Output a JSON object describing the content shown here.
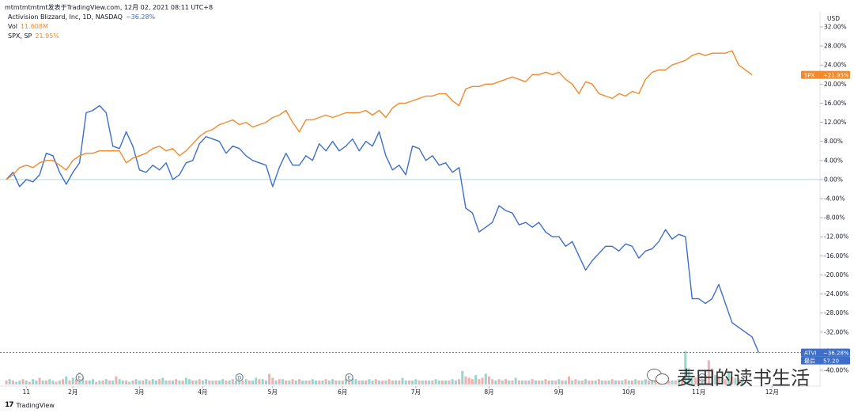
{
  "header": {
    "source_line": "mtmtmtmtmt发表于TradingView.com, 12月 02, 2021 08:11 UTC+8"
  },
  "legend": {
    "atvi": {
      "label": "Activision Blizzard, Inc, 1D, NASDAQ",
      "value": "−36.28%",
      "color": "#3d6ec9"
    },
    "vol": {
      "label": "Vol",
      "value": "11.608M",
      "color": "#f08a2c"
    },
    "spx": {
      "label": "SPX, SP",
      "value": "21.95%",
      "color": "#f08a2c"
    }
  },
  "footer": {
    "logo": "17",
    "brand": "TradingView"
  },
  "watermark": {
    "text": "麦田的读书生活"
  },
  "colors": {
    "atvi": "#3d6ec9",
    "spx": "#f08a2c",
    "vol_up": "#8dd0c6",
    "vol_down": "#f2a5a5",
    "zero_line": "#b2d8d6",
    "grid": "#f0f3fa"
  },
  "chart_data": {
    "type": "line",
    "x_unit": "trading day",
    "y_unit": "%",
    "ylim": [
      -40,
      32
    ],
    "grid": false,
    "y_axis": {
      "currency": "USD",
      "ticks": [
        "32.00%",
        "28.00%",
        "24.00%",
        "20.00%",
        "16.00%",
        "12.00%",
        "8.00%",
        "4.00%",
        "0.00%",
        "-4.00%",
        "-8.00%",
        "-12.00%",
        "-16.00%",
        "-20.00%",
        "-24.00%",
        "-28.00%",
        "-32.00%",
        "-36.00%",
        "-40.00%"
      ],
      "tick_values": [
        32,
        28,
        24,
        20,
        16,
        12,
        8,
        4,
        0,
        -4,
        -8,
        -12,
        -16,
        -20,
        -24,
        -28,
        -32,
        -36,
        -40
      ]
    },
    "x_axis": {
      "ticks": [
        "11",
        "2月",
        "3月",
        "4月",
        "5月",
        "6月",
        "7月",
        "8月",
        "9月",
        "10月",
        "11月",
        "12月"
      ],
      "tick_days": [
        6,
        20,
        40,
        59,
        80,
        101,
        123,
        145,
        166,
        187,
        208,
        230
      ]
    },
    "earnings_markers": [
      {
        "label": "E",
        "day": 22
      },
      {
        "label": "D",
        "day": 70
      },
      {
        "label": "E",
        "day": 103
      },
      {
        "label": "E",
        "day": 209
      }
    ],
    "series": [
      {
        "name": "ATVI",
        "color": "#3d6ec9",
        "last_label": "ATVI",
        "last_value_text": "−36.28%",
        "price_label": "57.20",
        "price_prefix": "最后",
        "points": [
          [
            0,
            0
          ],
          [
            2,
            1.5
          ],
          [
            4,
            -1.5
          ],
          [
            6,
            0
          ],
          [
            8,
            -0.5
          ],
          [
            10,
            1
          ],
          [
            12,
            5.5
          ],
          [
            14,
            5
          ],
          [
            16,
            1.5
          ],
          [
            18,
            -1
          ],
          [
            20,
            1.5
          ],
          [
            22,
            3.5
          ],
          [
            24,
            14
          ],
          [
            26,
            14.5
          ],
          [
            28,
            15.5
          ],
          [
            30,
            14
          ],
          [
            32,
            7
          ],
          [
            34,
            6.5
          ],
          [
            36,
            10
          ],
          [
            38,
            7
          ],
          [
            40,
            2
          ],
          [
            42,
            1.5
          ],
          [
            44,
            3
          ],
          [
            46,
            2
          ],
          [
            48,
            3.5
          ],
          [
            50,
            0
          ],
          [
            52,
            1
          ],
          [
            54,
            3.5
          ],
          [
            56,
            4
          ],
          [
            58,
            7.5
          ],
          [
            60,
            9
          ],
          [
            62,
            8.5
          ],
          [
            64,
            8
          ],
          [
            66,
            5.5
          ],
          [
            68,
            7
          ],
          [
            70,
            6.5
          ],
          [
            72,
            5
          ],
          [
            74,
            4
          ],
          [
            76,
            3.5
          ],
          [
            78,
            3
          ],
          [
            80,
            -1.5
          ],
          [
            82,
            2.5
          ],
          [
            84,
            5.5
          ],
          [
            86,
            3
          ],
          [
            88,
            3
          ],
          [
            90,
            5
          ],
          [
            92,
            4
          ],
          [
            94,
            7.5
          ],
          [
            96,
            6
          ],
          [
            98,
            8
          ],
          [
            100,
            6
          ],
          [
            102,
            7
          ],
          [
            104,
            8.5
          ],
          [
            106,
            6
          ],
          [
            108,
            8
          ],
          [
            110,
            7
          ],
          [
            112,
            10
          ],
          [
            114,
            5
          ],
          [
            116,
            2
          ],
          [
            118,
            3
          ],
          [
            120,
            1
          ],
          [
            122,
            7
          ],
          [
            124,
            6.5
          ],
          [
            126,
            4
          ],
          [
            128,
            5
          ],
          [
            130,
            3
          ],
          [
            132,
            3.5
          ],
          [
            134,
            1.5
          ],
          [
            136,
            2.5
          ],
          [
            138,
            -6
          ],
          [
            140,
            -7
          ],
          [
            142,
            -11
          ],
          [
            144,
            -10
          ],
          [
            146,
            -9
          ],
          [
            148,
            -5.5
          ],
          [
            150,
            -6.5
          ],
          [
            152,
            -7
          ],
          [
            154,
            -9.5
          ],
          [
            156,
            -9
          ],
          [
            158,
            -10
          ],
          [
            160,
            -9
          ],
          [
            162,
            -11
          ],
          [
            164,
            -12
          ],
          [
            166,
            -12
          ],
          [
            168,
            -14
          ],
          [
            170,
            -13
          ],
          [
            172,
            -16
          ],
          [
            174,
            -19
          ],
          [
            176,
            -17
          ],
          [
            178,
            -15.5
          ],
          [
            180,
            -14
          ],
          [
            182,
            -14
          ],
          [
            184,
            -15
          ],
          [
            186,
            -13.5
          ],
          [
            188,
            -14
          ],
          [
            190,
            -16.5
          ],
          [
            192,
            -15
          ],
          [
            194,
            -14.5
          ],
          [
            196,
            -13
          ],
          [
            198,
            -10.5
          ],
          [
            200,
            -12.5
          ],
          [
            202,
            -11.5
          ],
          [
            204,
            -12
          ],
          [
            206,
            -25
          ],
          [
            208,
            -25
          ],
          [
            210,
            -26
          ],
          [
            212,
            -25
          ],
          [
            214,
            -22
          ],
          [
            216,
            -26
          ],
          [
            218,
            -30
          ],
          [
            220,
            -31
          ],
          [
            222,
            -32
          ],
          [
            224,
            -33
          ],
          [
            226,
            -36.28
          ]
        ]
      },
      {
        "name": "SPX",
        "color": "#f08a2c",
        "last_label": "SPX",
        "last_value_text": "+21.95%",
        "points": [
          [
            0,
            0
          ],
          [
            2,
            1
          ],
          [
            4,
            2.5
          ],
          [
            6,
            3
          ],
          [
            8,
            2.5
          ],
          [
            10,
            3.5
          ],
          [
            12,
            4
          ],
          [
            14,
            4
          ],
          [
            16,
            3
          ],
          [
            18,
            2
          ],
          [
            20,
            4
          ],
          [
            22,
            5
          ],
          [
            24,
            5.5
          ],
          [
            26,
            5.5
          ],
          [
            28,
            6
          ],
          [
            30,
            6
          ],
          [
            32,
            6
          ],
          [
            34,
            6
          ],
          [
            36,
            3.5
          ],
          [
            38,
            4.5
          ],
          [
            40,
            5
          ],
          [
            42,
            5.5
          ],
          [
            44,
            6.5
          ],
          [
            46,
            7
          ],
          [
            48,
            6
          ],
          [
            50,
            6.5
          ],
          [
            52,
            5
          ],
          [
            54,
            6
          ],
          [
            56,
            7.5
          ],
          [
            58,
            9
          ],
          [
            60,
            10
          ],
          [
            62,
            10.5
          ],
          [
            64,
            11.5
          ],
          [
            66,
            12
          ],
          [
            68,
            12.5
          ],
          [
            70,
            11.5
          ],
          [
            72,
            12
          ],
          [
            74,
            11
          ],
          [
            76,
            11.5
          ],
          [
            78,
            12
          ],
          [
            80,
            13
          ],
          [
            82,
            13.5
          ],
          [
            84,
            14.5
          ],
          [
            86,
            12
          ],
          [
            88,
            10
          ],
          [
            90,
            12.5
          ],
          [
            92,
            12.5
          ],
          [
            94,
            13
          ],
          [
            96,
            13.5
          ],
          [
            98,
            13
          ],
          [
            100,
            13.5
          ],
          [
            102,
            14
          ],
          [
            104,
            14
          ],
          [
            106,
            14
          ],
          [
            108,
            14.5
          ],
          [
            110,
            13.5
          ],
          [
            112,
            14.5
          ],
          [
            114,
            13
          ],
          [
            116,
            15
          ],
          [
            118,
            16
          ],
          [
            120,
            16
          ],
          [
            122,
            16.5
          ],
          [
            124,
            17
          ],
          [
            126,
            17.5
          ],
          [
            128,
            17.5
          ],
          [
            130,
            18
          ],
          [
            132,
            18
          ],
          [
            134,
            16.5
          ],
          [
            136,
            15.5
          ],
          [
            138,
            19
          ],
          [
            140,
            19.5
          ],
          [
            142,
            19.5
          ],
          [
            144,
            20
          ],
          [
            146,
            20
          ],
          [
            148,
            20.5
          ],
          [
            150,
            21
          ],
          [
            152,
            21.5
          ],
          [
            154,
            21
          ],
          [
            156,
            20.5
          ],
          [
            158,
            22
          ],
          [
            160,
            22
          ],
          [
            162,
            22.5
          ],
          [
            164,
            22
          ],
          [
            166,
            22.5
          ],
          [
            168,
            21
          ],
          [
            170,
            20
          ],
          [
            172,
            18
          ],
          [
            174,
            20.5
          ],
          [
            176,
            20
          ],
          [
            178,
            18
          ],
          [
            180,
            17.5
          ],
          [
            182,
            17
          ],
          [
            184,
            18
          ],
          [
            186,
            17.5
          ],
          [
            188,
            18.5
          ],
          [
            190,
            18
          ],
          [
            192,
            21
          ],
          [
            194,
            22.5
          ],
          [
            196,
            23
          ],
          [
            198,
            23
          ],
          [
            200,
            24
          ],
          [
            202,
            24.5
          ],
          [
            204,
            25
          ],
          [
            206,
            26
          ],
          [
            208,
            26.5
          ],
          [
            210,
            26
          ],
          [
            212,
            26.5
          ],
          [
            214,
            26.5
          ],
          [
            216,
            26.5
          ],
          [
            218,
            27
          ],
          [
            220,
            24
          ],
          [
            222,
            23
          ],
          [
            224,
            21.95
          ]
        ]
      }
    ],
    "volume": {
      "name": "Vol",
      "up_color": "#8dd0c6",
      "down_color": "#f2a5a5",
      "values": [
        0.3,
        0.4,
        0.3,
        0.2,
        0.3,
        0.4,
        0.3,
        0.2,
        0.4,
        0.3,
        0.5,
        0.3,
        0.3,
        0.4,
        0.3,
        0.2,
        0.3,
        0.4,
        0.6,
        0.3,
        0.5,
        0.4,
        0.9,
        0.5,
        0.3,
        0.3,
        0.4,
        0.2,
        0.3,
        0.3,
        0.4,
        0.3,
        0.3,
        0.6,
        0.4,
        0.3,
        0.3,
        0.2,
        0.3,
        0.4,
        0.3,
        0.3,
        0.4,
        0.3,
        0.4,
        0.3,
        0.4,
        0.5,
        0.3,
        0.3,
        0.3,
        0.4,
        0.3,
        0.3,
        0.5,
        0.4,
        0.3,
        0.3,
        0.4,
        0.3,
        0.4,
        0.3,
        0.3,
        0.3,
        0.3,
        0.4,
        0.3,
        0.3,
        0.4,
        0.3,
        0.4,
        0.3,
        0.4,
        0.3,
        0.3,
        0.5,
        0.4,
        0.4,
        0.3,
        0.8,
        0.5,
        0.3,
        0.4,
        0.4,
        0.3,
        0.3,
        0.4,
        0.3,
        0.4,
        0.3,
        0.3,
        0.3,
        0.4,
        0.3,
        0.3,
        0.3,
        0.4,
        0.3,
        0.4,
        0.3,
        0.3,
        0.3,
        0.4,
        0.3,
        0.5,
        0.4,
        0.3,
        0.3,
        0.3,
        0.4,
        0.3,
        0.4,
        0.3,
        0.3,
        0.3,
        0.4,
        0.3,
        0.3,
        0.3,
        0.5,
        0.3,
        0.3,
        0.3,
        0.4,
        0.3,
        0.3,
        0.3,
        0.3,
        0.3,
        0.4,
        0.3,
        0.3,
        0.3,
        0.3,
        0.4,
        0.3,
        0.4,
        1.0,
        0.6,
        0.5,
        0.4,
        0.7,
        0.4,
        0.5,
        0.8,
        0.6,
        0.4,
        0.3,
        0.4,
        0.3,
        0.4,
        0.3,
        0.3,
        0.5,
        0.3,
        0.3,
        0.3,
        0.3,
        0.4,
        0.3,
        0.3,
        0.3,
        0.4,
        0.3,
        0.3,
        0.3,
        0.4,
        0.3,
        0.3,
        0.6,
        0.3,
        0.4,
        0.3,
        0.3,
        0.4,
        0.3,
        0.3,
        0.3,
        0.4,
        0.3,
        0.3,
        0.3,
        0.4,
        0.3,
        0.3,
        0.3,
        0.4,
        0.3,
        0.3,
        0.4,
        0.3,
        0.3,
        0.4,
        0.3,
        0.3,
        0.3,
        0.3,
        0.3,
        0.4,
        0.3,
        0.3,
        0.3,
        0.4,
        0.3,
        2.5,
        1.2,
        0.6,
        0.5,
        0.4,
        0.4,
        0.7,
        1.8,
        1.2,
        0.7,
        0.6,
        0.5,
        0.4,
        0.9,
        0.6,
        0.5,
        0.4,
        0.3
      ],
      "down_days": [
        0,
        2,
        5,
        7,
        10,
        12,
        15,
        17,
        19,
        21,
        24,
        27,
        29,
        31,
        33,
        36,
        38,
        41,
        43,
        46,
        49,
        51,
        53,
        56,
        58,
        61,
        63,
        66,
        68,
        71,
        73,
        76,
        79,
        80,
        82,
        84,
        86,
        88,
        91,
        94,
        96,
        99,
        101,
        103,
        106,
        108,
        111,
        113,
        115,
        116,
        118,
        121,
        124,
        126,
        128,
        131,
        133,
        136,
        138,
        139,
        140,
        142,
        143,
        145,
        146,
        148,
        150,
        152,
        154,
        156,
        158,
        160,
        162,
        163,
        165,
        167,
        169,
        171,
        173,
        175,
        176,
        178,
        180,
        182,
        184,
        186,
        188,
        190,
        193,
        195,
        197,
        199,
        201,
        203,
        207,
        208,
        210,
        211,
        212,
        214,
        216,
        218,
        220,
        222,
        224
      ]
    }
  }
}
